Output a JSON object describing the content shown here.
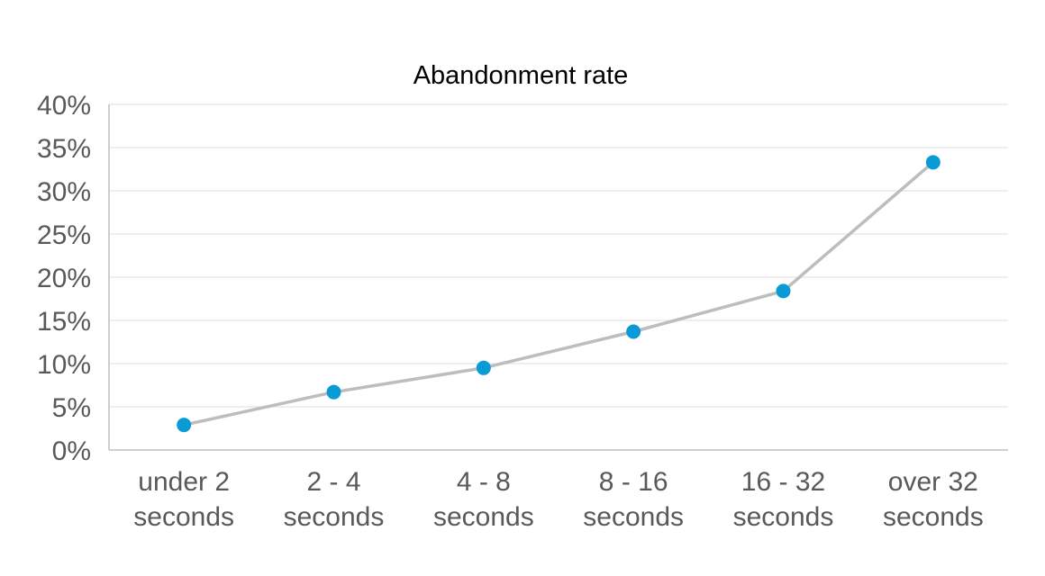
{
  "chart_data": {
    "type": "line",
    "title": "Abandonment rate",
    "xlabel": "",
    "ylabel": "",
    "categories": [
      [
        "under 2",
        "seconds"
      ],
      [
        "2 - 4",
        "seconds"
      ],
      [
        "4 - 8",
        "seconds"
      ],
      [
        "8 - 16",
        "seconds"
      ],
      [
        "16 - 32",
        "seconds"
      ],
      [
        "over 32",
        "seconds"
      ]
    ],
    "series": [
      {
        "values": [
          0.029,
          0.067,
          0.095,
          0.137,
          0.184,
          0.333
        ]
      }
    ],
    "ylim": [
      0,
      0.4
    ],
    "y_ticks": [
      "0%",
      "5%",
      "10%",
      "15%",
      "20%",
      "25%",
      "30%",
      "35%",
      "40%"
    ],
    "y_tick_values": [
      0,
      0.05,
      0.1,
      0.15,
      0.2,
      0.25,
      0.3,
      0.35,
      0.4
    ],
    "grid": true,
    "legend": "none",
    "colors": {
      "line": "#bdbdbd",
      "marker": "#0a9ad6",
      "gridline": "#e3e3e3",
      "axis": "#bfbfbf",
      "tick_text": "#595959",
      "title_text": "#000000"
    }
  }
}
